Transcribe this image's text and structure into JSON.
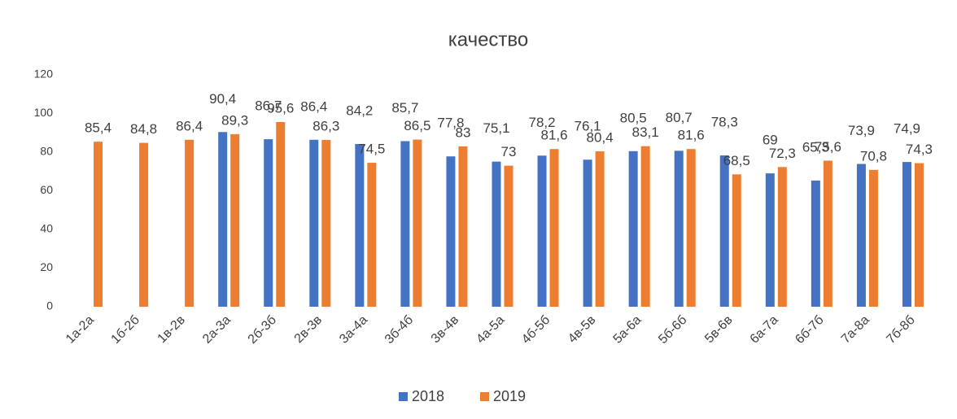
{
  "chart_data": {
    "type": "bar",
    "title": "качество",
    "categories": [
      "1а-2а",
      "1б-2б",
      "1в-2в",
      "2а-3а",
      "2б-3б",
      "2в-3в",
      "3а-4а",
      "3б-4б",
      "3в-4в",
      "4а-5а",
      "4б-5б",
      "4в-5в",
      "5а-6а",
      "5б-6б",
      "5в-6в",
      "6а-7а",
      "6б-7б",
      "7а-8а",
      "7б-8б"
    ],
    "series": [
      {
        "name": "2018",
        "color": "#4472c4",
        "values": [
          null,
          null,
          null,
          90.4,
          86.7,
          86.4,
          84.2,
          85.7,
          77.8,
          75.1,
          78.2,
          76.1,
          80.5,
          80.7,
          78.3,
          69,
          65.3,
          73.9,
          74.9
        ],
        "value_labels": [
          null,
          null,
          null,
          "90,4",
          "86,7",
          "86,4",
          "84,2",
          "85,7",
          "77,8",
          "75,1",
          "78,2",
          "76,1",
          "80,5",
          "80,7",
          "78,3",
          "69",
          "65,3",
          "73,9",
          "74,9"
        ]
      },
      {
        "name": "2019",
        "color": "#ed7d31",
        "values": [
          85.4,
          84.8,
          86.4,
          89.3,
          95.6,
          86.3,
          74.5,
          86.5,
          83,
          73,
          81.6,
          80.4,
          83.1,
          81.6,
          68.5,
          72.3,
          75.6,
          70.8,
          74.3
        ],
        "value_labels": [
          "85,4",
          "84,8",
          "86,4",
          "89,3",
          "95,6",
          "86,3",
          "74,5",
          "86,5",
          "83",
          "73",
          "81,6",
          "80,4",
          "83,1",
          "81,6",
          "68,5",
          "72,3",
          "75,6",
          "70,8",
          "74,3"
        ]
      }
    ],
    "ylim": [
      0,
      120
    ],
    "yticks": [
      0,
      20,
      40,
      60,
      80,
      100,
      120
    ],
    "grid": false,
    "legend": "bottom"
  }
}
